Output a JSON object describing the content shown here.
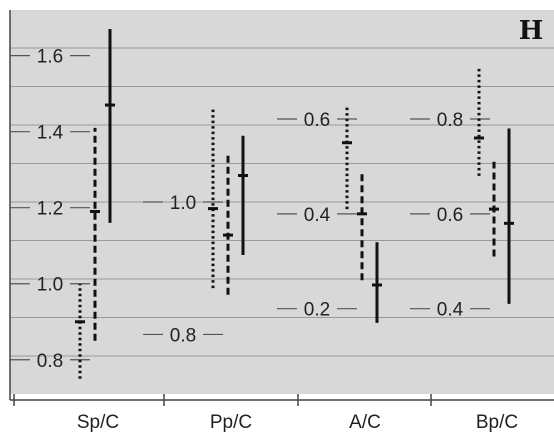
{
  "panel_label": "H",
  "chart_data": {
    "type": "range",
    "title": "",
    "xlabel": "",
    "ylabel": "",
    "grid": true,
    "background_color": "#d8d8d8",
    "categories": [
      "Sp/C",
      "Pp/C",
      "A/C",
      "Bp/C"
    ],
    "line_styles": [
      "dotted",
      "dashed",
      "solid"
    ],
    "groups": [
      {
        "category": "Sp/C",
        "axis_ticks": [
          "0.8",
          "1.0",
          "1.2",
          "1.4",
          "1.6"
        ],
        "tick_values": [
          0.8,
          1.0,
          1.2,
          1.4,
          1.6
        ],
        "ylim": [
          0.71,
          1.72
        ],
        "intervals": [
          {
            "low": 0.75,
            "mid": 0.9,
            "high": 1.0
          },
          {
            "low": 0.85,
            "mid": 1.19,
            "high": 1.41
          },
          {
            "low": 1.16,
            "mid": 1.47,
            "high": 1.67
          }
        ]
      },
      {
        "category": "Pp/C",
        "axis_ticks": [
          "0.8",
          "1.0"
        ],
        "tick_values": [
          0.8,
          1.0
        ],
        "ylim": [
          0.71,
          1.29
        ],
        "intervals": [
          {
            "low": 0.87,
            "mid": 0.99,
            "high": 1.14
          },
          {
            "low": 0.86,
            "mid": 0.95,
            "high": 1.07
          },
          {
            "low": 0.92,
            "mid": 1.04,
            "high": 1.1
          }
        ]
      },
      {
        "category": "A/C",
        "axis_ticks": [
          "0.2",
          "0.4",
          "0.6"
        ],
        "tick_values": [
          0.2,
          0.4,
          0.6
        ],
        "ylim": [
          0.02,
          0.83
        ],
        "intervals": [
          {
            "low": 0.41,
            "mid": 0.55,
            "high": 0.63
          },
          {
            "low": 0.26,
            "mid": 0.4,
            "high": 0.49
          },
          {
            "low": 0.17,
            "mid": 0.25,
            "high": 0.34
          }
        ]
      },
      {
        "category": "Bp/C",
        "axis_ticks": [
          "0.4",
          "0.6",
          "0.8"
        ],
        "tick_values": [
          0.4,
          0.6,
          0.8
        ],
        "ylim": [
          0.22,
          1.03
        ],
        "intervals": [
          {
            "low": 0.68,
            "mid": 0.76,
            "high": 0.91
          },
          {
            "low": 0.51,
            "mid": 0.61,
            "high": 0.71
          },
          {
            "low": 0.41,
            "mid": 0.58,
            "high": 0.78
          }
        ]
      }
    ]
  }
}
